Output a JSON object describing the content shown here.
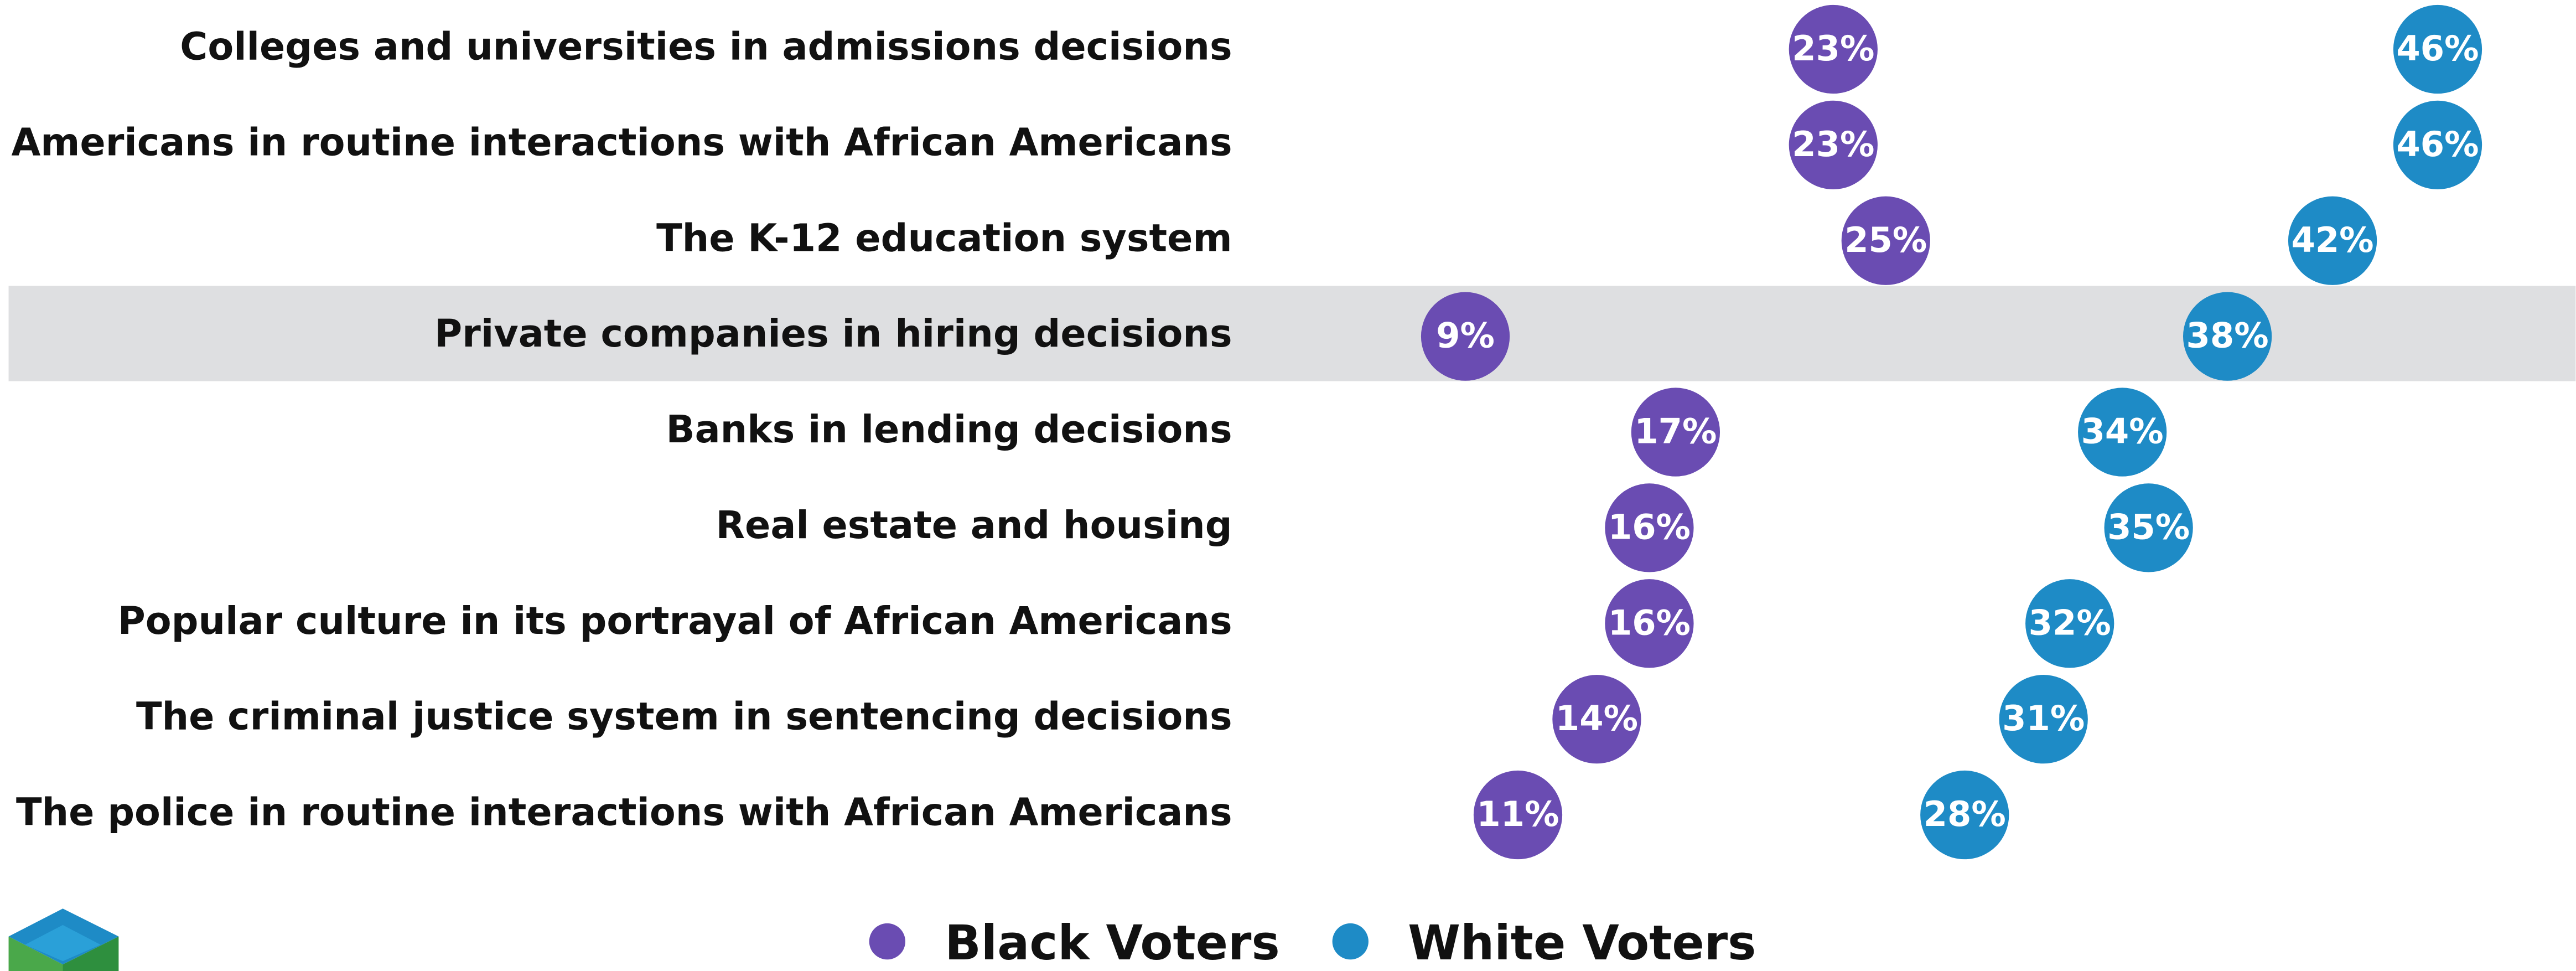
{
  "chart_data": {
    "type": "dot",
    "categories": [
      "Colleges and universities in admissions decisions",
      "White Americans in routine interactions with African Americans",
      "The K-12 education system",
      "Private companies in hiring decisions",
      "Banks in lending decisions",
      "Real estate and housing",
      "Popular culture in its portrayal of African Americans",
      "The criminal justice system in sentencing decisions",
      "The police in routine interactions with African Americans"
    ],
    "series": [
      {
        "name": "Black Voters",
        "color": "#6a4cb2",
        "values": [
          23,
          23,
          25,
          9,
          17,
          16,
          16,
          14,
          11
        ],
        "value_labels": [
          "23%",
          "23%",
          "25%",
          "9%",
          "17%",
          "16%",
          "16%",
          "14%",
          "11%"
        ]
      },
      {
        "name": "White Voters",
        "color": "#1e8bc6",
        "values": [
          46,
          46,
          42,
          38,
          34,
          35,
          32,
          31,
          28
        ],
        "value_labels": [
          "46%",
          "46%",
          "42%",
          "38%",
          "34%",
          "35%",
          "32%",
          "31%",
          "28%"
        ]
      }
    ]
  }
}
